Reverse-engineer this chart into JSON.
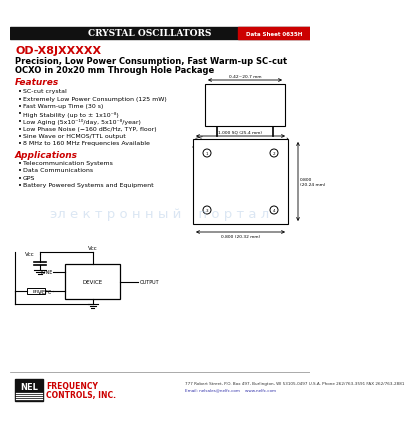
{
  "header_text": "CRYSTAL OSCILLATORS",
  "datasheet_num": "Data Sheet 0635H",
  "part_number": "OD-X8JXXXXX",
  "subtitle_line1": "Precision, Low Power Consumption, Fast Warm-up SC-cut",
  "subtitle_line2": "OCXO in 20x20 mm Through Hole Package",
  "features_title": "Features",
  "features": [
    "SC-cut crystal",
    "Extremely Low Power Consumption (125 mW)",
    "Fast Warm-up Time (30 s)",
    "High Stability (up to ± 1x10⁻⁸)",
    "Low Aging (5x10⁻¹⁰/day, 5x10⁻⁸/year)",
    "Low Phase Noise (−160 dBc/Hz, TYP, floor)",
    "Sine Wave or HCMOS/TTL output",
    "8 MHz to 160 MHz Frequencies Available"
  ],
  "applications_title": "Applications",
  "applications": [
    "Telecommunication Systems",
    "Data Communications",
    "GPS",
    "Battery Powered Systems and Equipment"
  ],
  "header_bg": "#111111",
  "header_fg": "#ffffff",
  "datasheet_bg": "#cc0000",
  "datasheet_fg": "#ffffff",
  "features_color": "#cc0000",
  "applications_color": "#cc0000",
  "part_color": "#cc0000",
  "subtitle_color": "#000000",
  "body_color": "#000000",
  "nel_box_bg": "#111111",
  "nel_color": "#cc0000",
  "footer_address": "777 Robert Street, P.O. Box 497, Burlington, WI 53105-0497 U.S.A. Phone 262/763-3591 FAX 262/763-2881",
  "footer_email": "Email: nelsales@nelfc.com    www.nelfc.com",
  "watermark_text": "эл е к т р о н н ы й    п о р т а л",
  "watermark_color": "#b8cfe8",
  "watermark_alpha": 0.5,
  "bg_color": "#ffffff"
}
